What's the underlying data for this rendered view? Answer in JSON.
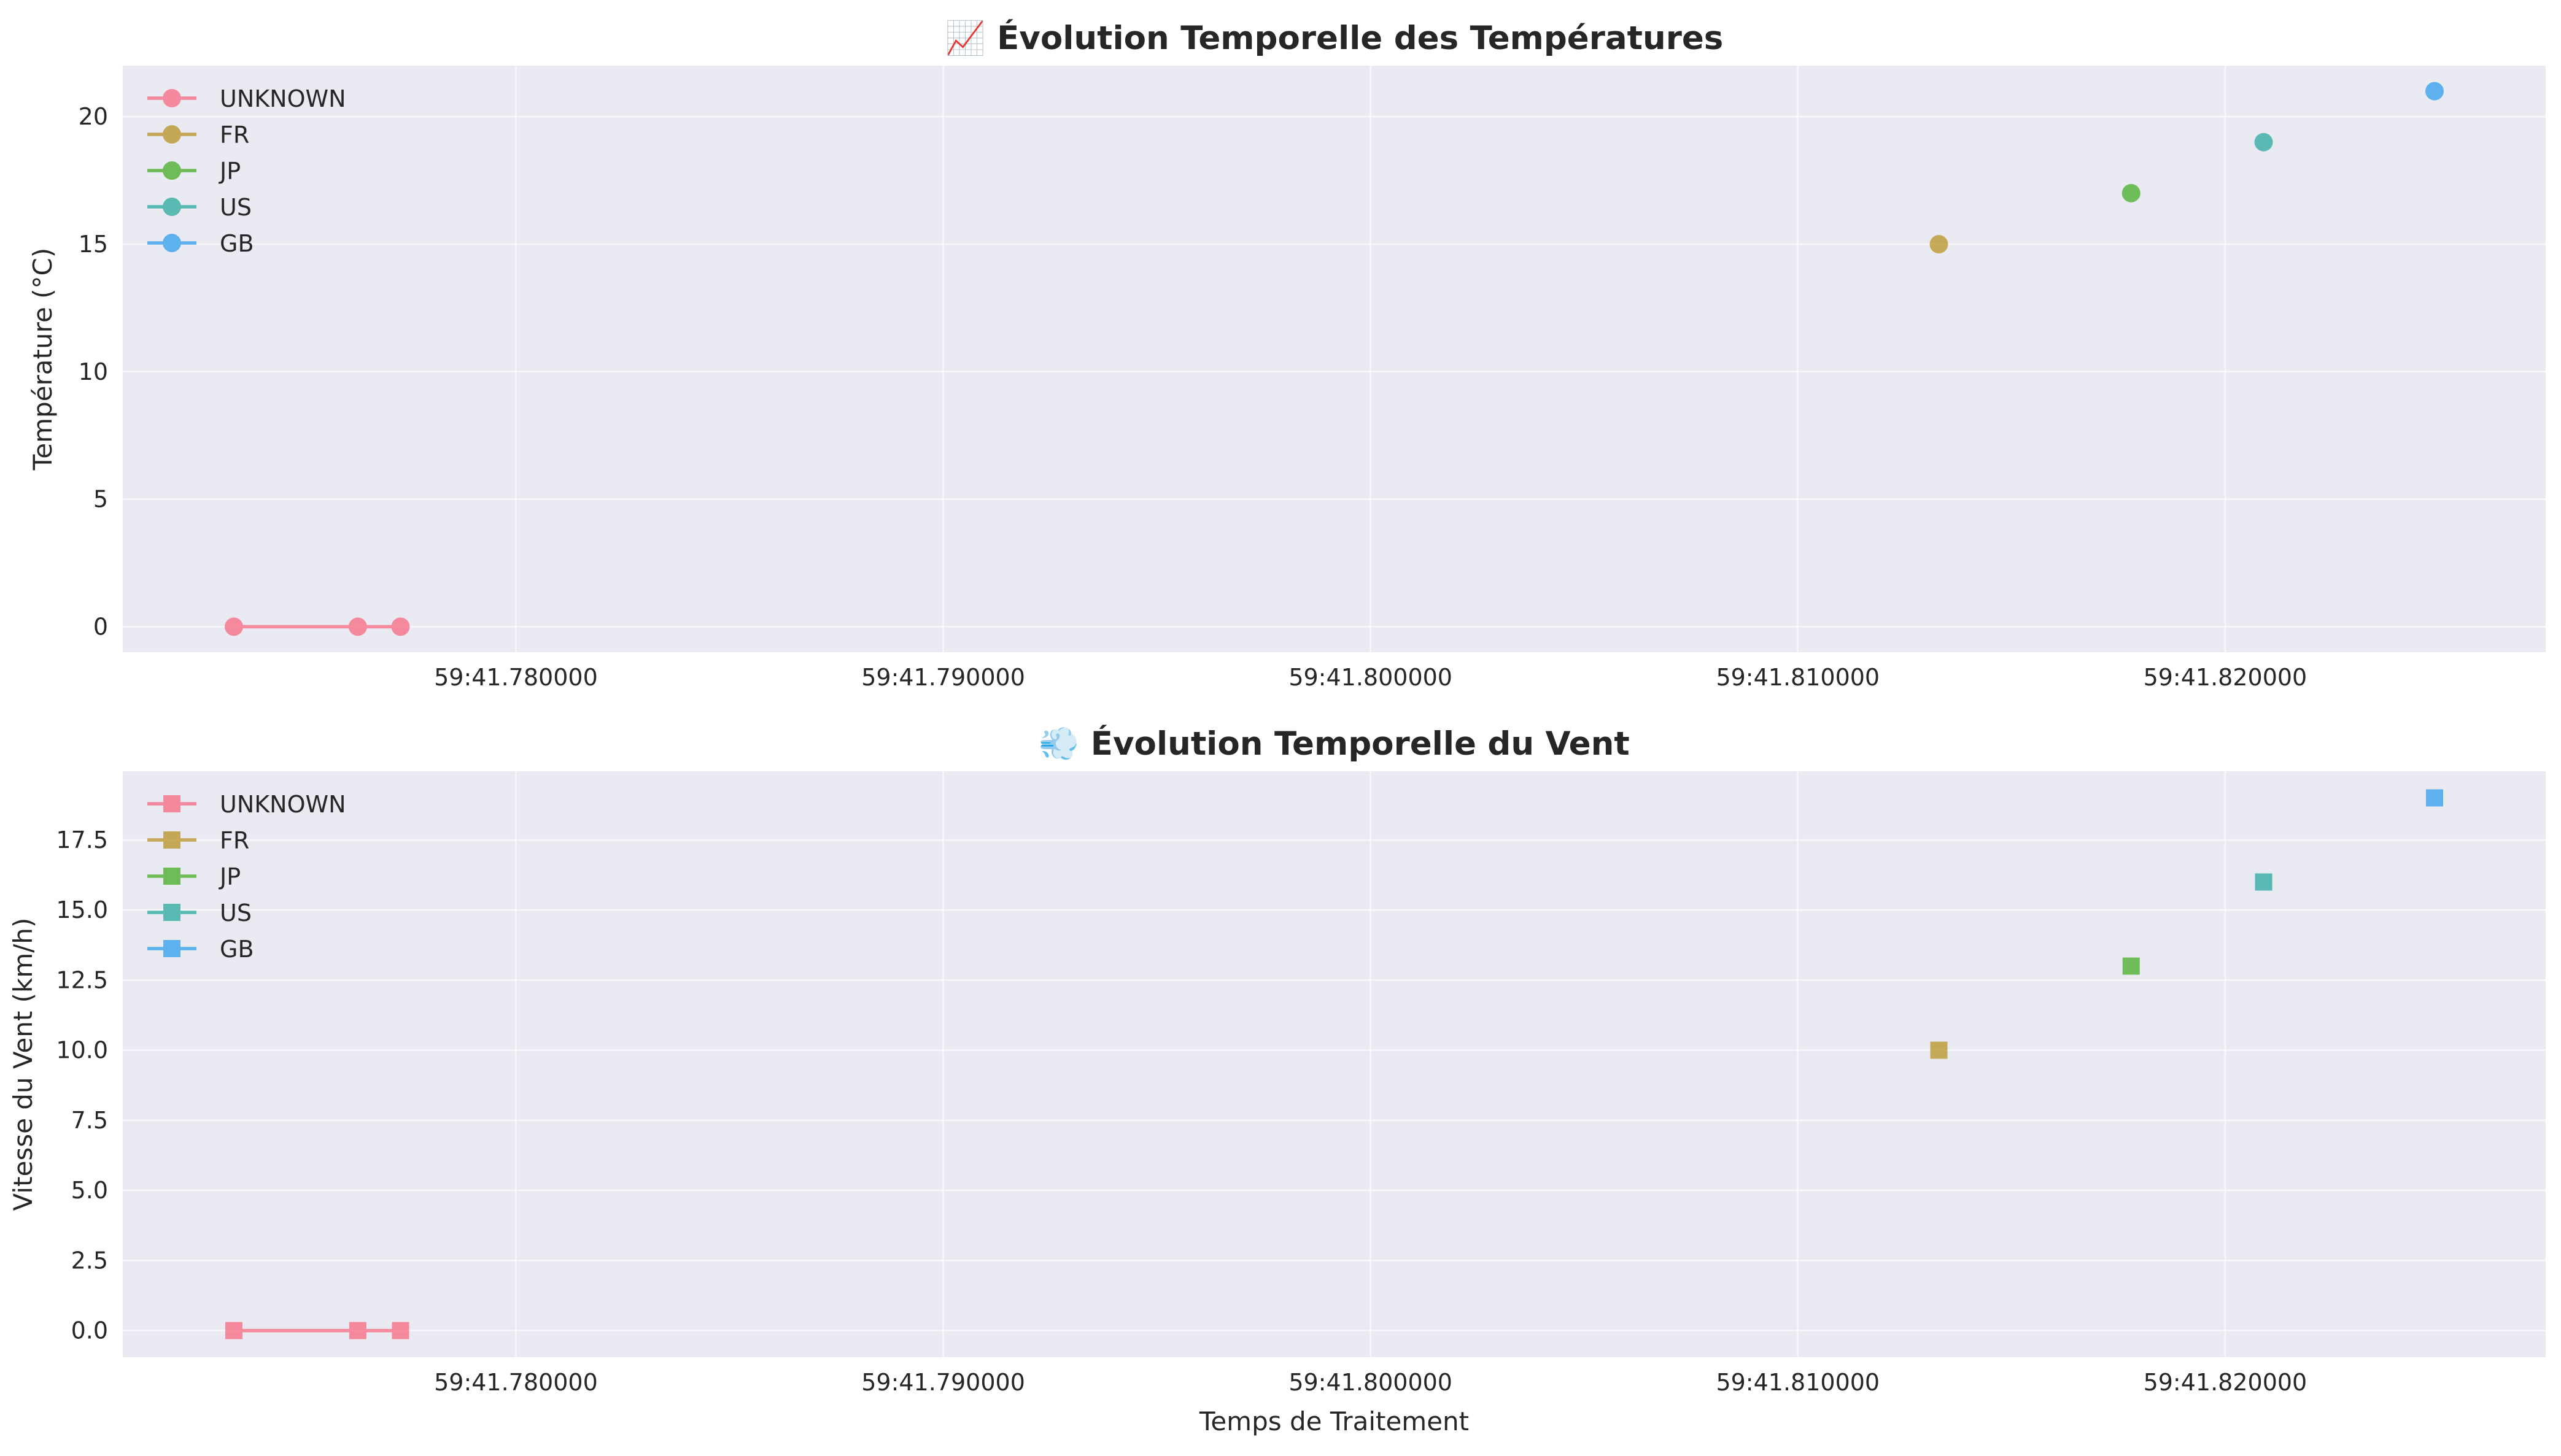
{
  "chart_data": [
    {
      "type": "line",
      "title": "📈 Évolution Temporelle des Températures",
      "xlabel": "",
      "ylabel": "Température (°C)",
      "x_axis_kind": "time",
      "x_ticks": [
        {
          "value": 41.78,
          "label": "59:41.780000"
        },
        {
          "value": 41.79,
          "label": "59:41.790000"
        },
        {
          "value": 41.8,
          "label": "59:41.800000"
        },
        {
          "value": 41.81,
          "label": "59:41.810000"
        },
        {
          "value": 41.82,
          "label": "59:41.820000"
        }
      ],
      "y_ticks": [
        0,
        5,
        10,
        15,
        20
      ],
      "y_tick_labels": [
        "0",
        "5",
        "10",
        "15",
        "20"
      ],
      "xlim": [
        41.7708,
        41.8275
      ],
      "ylim": [
        -1,
        22
      ],
      "grid": true,
      "legend": "top-left",
      "marker": "circle",
      "series": [
        {
          "name": "UNKNOWN",
          "color": "#f77189",
          "x": [
            41.7734,
            41.7763,
            41.7773
          ],
          "y": [
            0,
            0,
            0
          ]
        },
        {
          "name": "FR",
          "color": "#bb9832",
          "x": [
            41.8133
          ],
          "y": [
            15
          ]
        },
        {
          "name": "JP",
          "color": "#50b131",
          "x": [
            41.8178
          ],
          "y": [
            17
          ]
        },
        {
          "name": "US",
          "color": "#36ada4",
          "x": [
            41.8209
          ],
          "y": [
            19
          ]
        },
        {
          "name": "GB",
          "color": "#3ba3ec",
          "x": [
            41.8249
          ],
          "y": [
            21
          ]
        }
      ]
    },
    {
      "type": "line",
      "title": "💨 Évolution Temporelle du Vent",
      "xlabel": "Temps de Traitement",
      "ylabel": "Vitesse du Vent (km/h)",
      "x_axis_kind": "time",
      "x_ticks": [
        {
          "value": 41.78,
          "label": "59:41.780000"
        },
        {
          "value": 41.79,
          "label": "59:41.790000"
        },
        {
          "value": 41.8,
          "label": "59:41.800000"
        },
        {
          "value": 41.81,
          "label": "59:41.810000"
        },
        {
          "value": 41.82,
          "label": "59:41.820000"
        }
      ],
      "y_ticks": [
        0,
        2.5,
        5,
        7.5,
        10,
        12.5,
        15,
        17.5
      ],
      "y_tick_labels": [
        "0.0",
        "2.5",
        "5.0",
        "7.5",
        "10.0",
        "12.5",
        "15.0",
        "17.5"
      ],
      "xlim": [
        41.7708,
        41.8275
      ],
      "ylim": [
        -0.95,
        19.95
      ],
      "grid": true,
      "legend": "top-left",
      "marker": "square",
      "series": [
        {
          "name": "UNKNOWN",
          "color": "#f77189",
          "x": [
            41.7734,
            41.7763,
            41.7773
          ],
          "y": [
            0,
            0,
            0
          ]
        },
        {
          "name": "FR",
          "color": "#bb9832",
          "x": [
            41.8133
          ],
          "y": [
            10
          ]
        },
        {
          "name": "JP",
          "color": "#50b131",
          "x": [
            41.8178
          ],
          "y": [
            13
          ]
        },
        {
          "name": "US",
          "color": "#36ada4",
          "x": [
            41.8209
          ],
          "y": [
            16
          ]
        },
        {
          "name": "GB",
          "color": "#3ba3ec",
          "x": [
            41.8249
          ],
          "y": [
            19
          ]
        }
      ]
    }
  ]
}
